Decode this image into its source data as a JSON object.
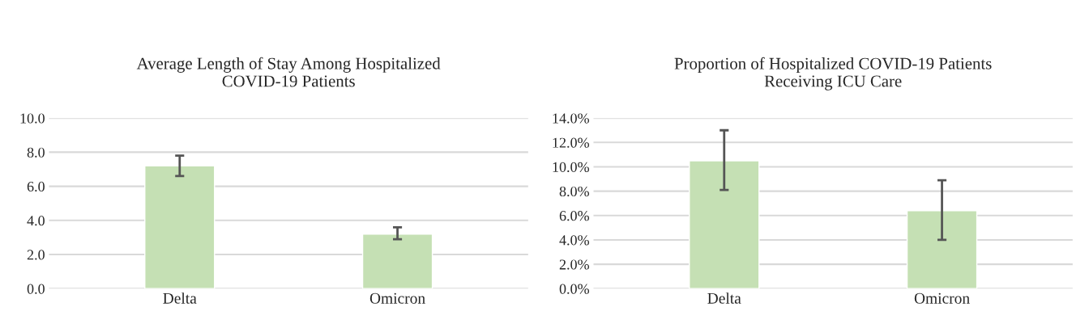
{
  "chart_data": [
    {
      "type": "bar",
      "title": "Average Length of Stay Among Hospitalized\nCOVID-19 Patients",
      "categories": [
        "Delta",
        "Omicron"
      ],
      "values": [
        7.2,
        3.2
      ],
      "errors": [
        [
          6.6,
          7.8
        ],
        [
          2.9,
          3.6
        ]
      ],
      "color": "#c5e0b4",
      "ylim": [
        0,
        10
      ],
      "yticks": [
        {
          "value": 0,
          "label": "0.0"
        },
        {
          "value": 2,
          "label": "2.0"
        },
        {
          "value": 4,
          "label": "4.0"
        },
        {
          "value": 6,
          "label": "6.0"
        },
        {
          "value": 8,
          "label": "8.0"
        },
        {
          "value": 10,
          "label": "10.0"
        }
      ],
      "grid": "y"
    },
    {
      "type": "bar",
      "title": "Proportion of Hospitalized COVID-19 Patients\nReceiving ICU Care",
      "categories": [
        "Delta",
        "Omicron"
      ],
      "values": [
        10.5,
        6.4
      ],
      "errors": [
        [
          8.1,
          13.0
        ],
        [
          4.0,
          8.9
        ]
      ],
      "color": "#c5e0b4",
      "ylim": [
        0,
        14
      ],
      "yticks": [
        {
          "value": 0,
          "label": "0.0%"
        },
        {
          "value": 2,
          "label": "2.0%"
        },
        {
          "value": 4,
          "label": "4.0%"
        },
        {
          "value": 6,
          "label": "6.0%"
        },
        {
          "value": 8,
          "label": "8.0%"
        },
        {
          "value": 10,
          "label": "10.0%"
        },
        {
          "value": 12,
          "label": "12.0%"
        },
        {
          "value": 14,
          "label": "14.0%"
        }
      ],
      "grid": "y"
    }
  ]
}
